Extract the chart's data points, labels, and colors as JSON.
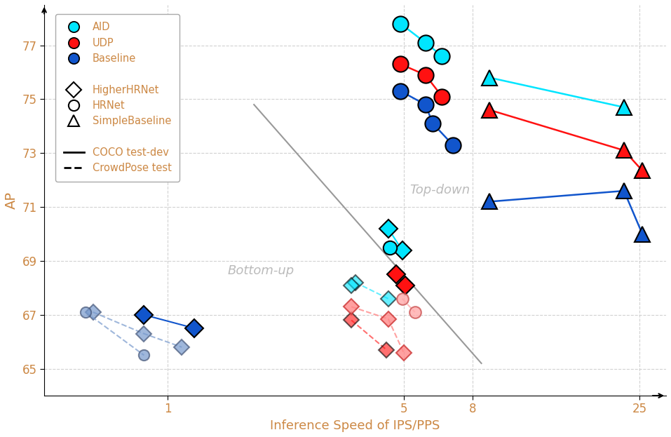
{
  "ylabel": "AP",
  "xlabel": "Inference Speed of IPS/PPS",
  "ylim": [
    64.0,
    78.5
  ],
  "yticks": [
    65,
    67,
    69,
    71,
    73,
    75,
    77
  ],
  "xticks_log": [
    1,
    5,
    8,
    25
  ],
  "bg_color": "#ffffff",
  "grid_color": "#cccccc",
  "text_color": "#cc8844",
  "region_text_color": "#aaaaaa",
  "diagonal_line": {
    "x": [
      1.8,
      8.5
    ],
    "y": [
      74.8,
      65.2
    ]
  },
  "series": [
    {
      "name": "AID_HRNet_COCO_topdown",
      "color": "#00e5ff",
      "marker": "o",
      "linestyle": "-",
      "markersize": 16,
      "linewidth": 1.8,
      "mec": "black",
      "mew": 1.5,
      "alpha": 1.0,
      "points": [
        [
          4.9,
          77.8
        ],
        [
          5.8,
          77.1
        ],
        [
          6.5,
          76.6
        ]
      ]
    },
    {
      "name": "UDP_HRNet_COCO_topdown",
      "color": "#ff1111",
      "marker": "o",
      "linestyle": "-",
      "markersize": 16,
      "linewidth": 1.8,
      "mec": "black",
      "mew": 1.5,
      "alpha": 1.0,
      "points": [
        [
          4.9,
          76.3
        ],
        [
          5.8,
          75.9
        ],
        [
          6.5,
          75.1
        ]
      ]
    },
    {
      "name": "Baseline_HRNet_COCO_topdown",
      "color": "#1155cc",
      "marker": "o",
      "linestyle": "-",
      "markersize": 16,
      "linewidth": 1.8,
      "mec": "black",
      "mew": 1.5,
      "alpha": 1.0,
      "points": [
        [
          4.9,
          75.3
        ],
        [
          5.8,
          74.8
        ],
        [
          6.1,
          74.1
        ],
        [
          7.0,
          73.3
        ]
      ]
    },
    {
      "name": "AID_SimpleBaseline_COCO_topdown",
      "color": "#00e5ff",
      "marker": "^",
      "linestyle": "-",
      "markersize": 16,
      "linewidth": 1.8,
      "mec": "black",
      "mew": 1.5,
      "alpha": 1.0,
      "points": [
        [
          9.0,
          75.8
        ],
        [
          22.5,
          74.7
        ]
      ]
    },
    {
      "name": "UDP_SimpleBaseline_COCO_topdown",
      "color": "#ff1111",
      "marker": "^",
      "linestyle": "-",
      "markersize": 16,
      "linewidth": 1.8,
      "mec": "black",
      "mew": 1.5,
      "alpha": 1.0,
      "points": [
        [
          9.0,
          74.6
        ],
        [
          22.5,
          73.1
        ],
        [
          25.5,
          72.35
        ]
      ]
    },
    {
      "name": "Baseline_SimpleBaseline_COCO_topdown",
      "color": "#1155cc",
      "marker": "^",
      "linestyle": "-",
      "markersize": 16,
      "linewidth": 1.8,
      "mec": "black",
      "mew": 1.5,
      "alpha": 1.0,
      "points": [
        [
          9.0,
          71.2
        ],
        [
          22.5,
          71.6
        ],
        [
          25.5,
          70.0
        ]
      ]
    },
    {
      "name": "AID_HigherHRNet_COCO_bottomup",
      "color": "#00e5ff",
      "marker": "D",
      "linestyle": "-",
      "markersize": 13,
      "linewidth": 1.5,
      "mec": "black",
      "mew": 1.5,
      "alpha": 1.0,
      "points": [
        [
          4.5,
          70.2
        ],
        [
          4.95,
          69.4
        ]
      ]
    },
    {
      "name": "UDP_HigherHRNet_COCO_bottomup",
      "color": "#ff1111",
      "marker": "D",
      "linestyle": "-",
      "markersize": 13,
      "linewidth": 1.5,
      "mec": "black",
      "mew": 1.5,
      "alpha": 1.0,
      "points": [
        [
          4.75,
          68.5
        ],
        [
          5.05,
          68.1
        ]
      ]
    },
    {
      "name": "Baseline_HigherHRNet_COCO_bottomup",
      "color": "#1155cc",
      "marker": "D",
      "linestyle": "-",
      "markersize": 13,
      "linewidth": 1.5,
      "mec": "black",
      "mew": 1.5,
      "alpha": 1.0,
      "points": [
        [
          0.85,
          67.0
        ],
        [
          1.2,
          66.5
        ]
      ]
    },
    {
      "name": "AID_HRNet_COCO_bottomup_circle",
      "color": "#00e5ff",
      "marker": "o",
      "linestyle": "-",
      "markersize": 14,
      "linewidth": 1.5,
      "mec": "black",
      "mew": 1.5,
      "alpha": 1.0,
      "points": [
        [
          4.55,
          69.5
        ]
      ]
    },
    {
      "name": "AID_HigherHRNet_CrowdPose_bottomup",
      "color": "#00e5ff",
      "marker": "D",
      "linestyle": "--",
      "markersize": 11,
      "linewidth": 1.5,
      "mec": "black",
      "mew": 1.5,
      "alpha": 0.6,
      "points": [
        [
          3.6,
          68.2
        ],
        [
          4.5,
          67.6
        ]
      ]
    },
    {
      "name": "UDP_HigherHRNet_CrowdPose_bottomup",
      "color": "#ff1111",
      "marker": "D",
      "linestyle": "--",
      "markersize": 11,
      "linewidth": 1.5,
      "mec": "black",
      "mew": 1.5,
      "alpha": 0.6,
      "points": [
        [
          3.5,
          66.8
        ],
        [
          4.45,
          65.7
        ]
      ]
    },
    {
      "name": "Baseline_HigherHRNet_CrowdPose_bottomup",
      "color": "#7799cc",
      "marker": "D",
      "linestyle": "--",
      "markersize": 11,
      "linewidth": 1.5,
      "mec": "#445577",
      "mew": 1.5,
      "alpha": 0.7,
      "points": [
        [
          0.6,
          67.1
        ],
        [
          0.85,
          66.3
        ],
        [
          1.1,
          65.8
        ]
      ]
    },
    {
      "name": "Baseline_HRNet_CrowdPose_bottomup_circle",
      "color": "#7799cc",
      "marker": "o",
      "linestyle": "--",
      "markersize": 11,
      "linewidth": 1.5,
      "mec": "#445577",
      "mew": 1.5,
      "alpha": 0.7,
      "points": [
        [
          0.57,
          67.1
        ],
        [
          0.85,
          65.5
        ]
      ]
    },
    {
      "name": "AID_SimpleBaseline_CrowdPose_topdown_circle",
      "color": "#ffaaaa",
      "marker": "o",
      "linestyle": "--",
      "markersize": 12,
      "linewidth": 1.5,
      "mec": "#cc5555",
      "mew": 1.5,
      "alpha": 0.8,
      "points": [
        [
          4.95,
          67.6
        ],
        [
          5.4,
          67.1
        ]
      ]
    },
    {
      "name": "UDP_SimpleBaseline_CrowdPose_topdown_diamond",
      "color": "#ff8888",
      "marker": "D",
      "linestyle": "--",
      "markersize": 11,
      "linewidth": 1.5,
      "mec": "#cc3333",
      "mew": 1.5,
      "alpha": 0.8,
      "points": [
        [
          3.5,
          67.3
        ],
        [
          4.5,
          66.85
        ],
        [
          5.0,
          65.6
        ]
      ]
    },
    {
      "name": "AID_HigherHRNet_CrowdPose_bottomup_extra",
      "color": "#00e5ff",
      "marker": "D",
      "linestyle": "--",
      "markersize": 11,
      "linewidth": 1.5,
      "mec": "black",
      "mew": 1.5,
      "alpha": 0.6,
      "points": [
        [
          3.5,
          68.1
        ]
      ]
    }
  ]
}
